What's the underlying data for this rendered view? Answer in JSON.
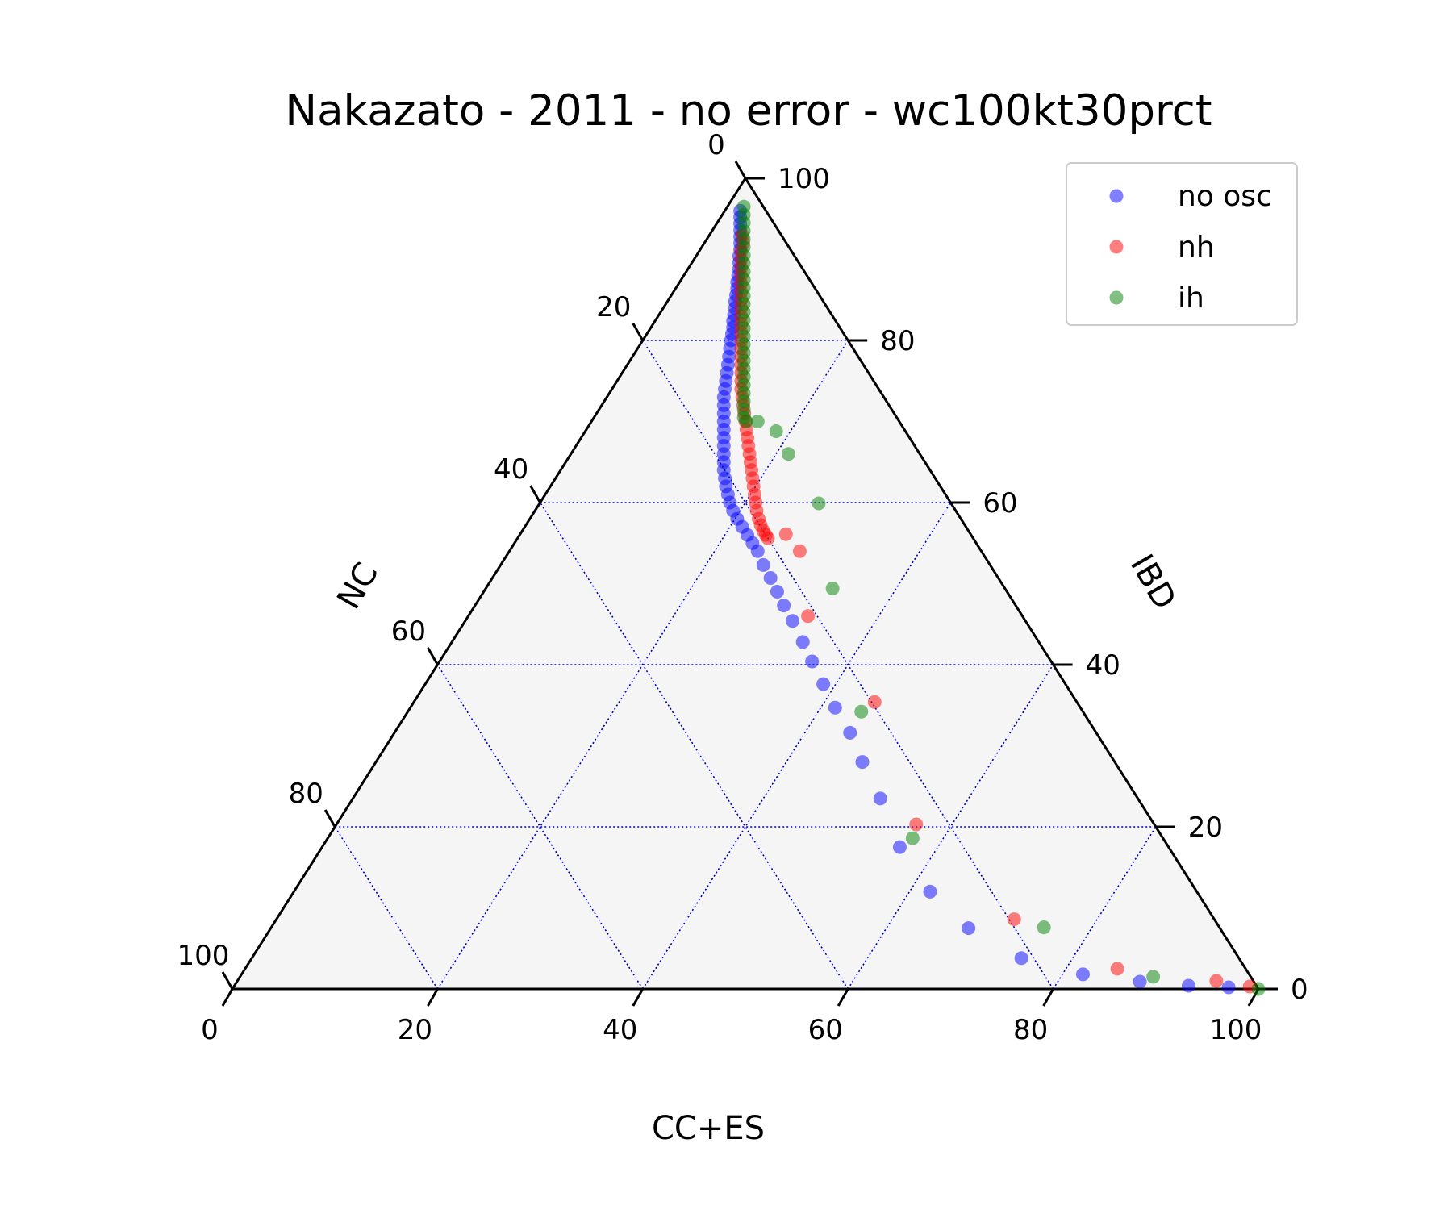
{
  "chart_data": {
    "type": "scatter",
    "subtype": "ternary",
    "title": "Nakazato - 2011 - no error - wc100kt30prct",
    "axes": {
      "bottom": {
        "label": "CC+ES",
        "ticks": [
          "0",
          "20",
          "40",
          "60",
          "80",
          "100"
        ]
      },
      "right": {
        "label": "IBD",
        "ticks": [
          "0",
          "20",
          "40",
          "60",
          "80",
          "100"
        ]
      },
      "left": {
        "label": "NC",
        "ticks": [
          "0",
          "20",
          "40",
          "60",
          "80",
          "100"
        ]
      },
      "range": [
        0,
        100
      ]
    },
    "grid": true,
    "legend_position": "top-right",
    "series": [
      {
        "name": "no osc",
        "color": "#0000ff",
        "points": [
          {
            "ccEs": 1.5,
            "ibd": 96.0
          },
          {
            "ccEs": 1.9,
            "ibd": 95.2
          },
          {
            "ccEs": 2.3,
            "ibd": 94.4
          },
          {
            "ccEs": 2.7,
            "ibd": 93.6
          },
          {
            "ccEs": 3.1,
            "ibd": 92.8
          },
          {
            "ccEs": 3.5,
            "ibd": 92.0
          },
          {
            "ccEs": 3.9,
            "ibd": 91.2
          },
          {
            "ccEs": 4.2,
            "ibd": 90.4
          },
          {
            "ccEs": 4.6,
            "ibd": 89.6
          },
          {
            "ccEs": 5.0,
            "ibd": 88.8
          },
          {
            "ccEs": 5.3,
            "ibd": 88.0
          },
          {
            "ccEs": 5.6,
            "ibd": 87.2
          },
          {
            "ccEs": 6.0,
            "ibd": 86.4
          },
          {
            "ccEs": 6.3,
            "ibd": 85.6
          },
          {
            "ccEs": 6.6,
            "ibd": 84.8
          },
          {
            "ccEs": 7.0,
            "ibd": 84.0
          },
          {
            "ccEs": 7.3,
            "ibd": 83.2
          },
          {
            "ccEs": 7.6,
            "ibd": 82.4
          },
          {
            "ccEs": 8.0,
            "ibd": 81.6
          },
          {
            "ccEs": 8.3,
            "ibd": 80.8
          },
          {
            "ccEs": 8.6,
            "ibd": 80.0
          },
          {
            "ccEs": 9.0,
            "ibd": 79.0
          },
          {
            "ccEs": 9.4,
            "ibd": 78.0
          },
          {
            "ccEs": 9.8,
            "ibd": 77.0
          },
          {
            "ccEs": 10.2,
            "ibd": 76.0
          },
          {
            "ccEs": 10.6,
            "ibd": 75.0
          },
          {
            "ccEs": 11.0,
            "ibd": 74.0
          },
          {
            "ccEs": 11.4,
            "ibd": 73.0
          },
          {
            "ccEs": 11.9,
            "ibd": 72.0
          },
          {
            "ccEs": 12.4,
            "ibd": 71.0
          },
          {
            "ccEs": 12.9,
            "ibd": 70.0
          },
          {
            "ccEs": 13.4,
            "ibd": 69.0
          },
          {
            "ccEs": 13.9,
            "ibd": 68.0
          },
          {
            "ccEs": 14.4,
            "ibd": 67.0
          },
          {
            "ccEs": 14.9,
            "ibd": 66.0
          },
          {
            "ccEs": 15.4,
            "ibd": 65.0
          },
          {
            "ccEs": 15.9,
            "ibd": 64.0
          },
          {
            "ccEs": 16.5,
            "ibd": 63.0
          },
          {
            "ccEs": 17.1,
            "ibd": 62.0
          },
          {
            "ccEs": 17.8,
            "ibd": 61.0
          },
          {
            "ccEs": 18.5,
            "ibd": 60.0
          },
          {
            "ccEs": 19.3,
            "ibd": 59.0
          },
          {
            "ccEs": 20.2,
            "ibd": 58.0
          },
          {
            "ccEs": 21.2,
            "ibd": 57.0
          },
          {
            "ccEs": 22.2,
            "ibd": 56.0
          },
          {
            "ccEs": 23.2,
            "ibd": 55.0
          },
          {
            "ccEs": 24.2,
            "ibd": 54.0
          },
          {
            "ccEs": 25.6,
            "ibd": 52.3
          },
          {
            "ccEs": 27.1,
            "ibd": 50.7
          },
          {
            "ccEs": 28.6,
            "ibd": 49.0
          },
          {
            "ccEs": 30.1,
            "ibd": 47.3
          },
          {
            "ccEs": 31.9,
            "ibd": 45.4
          },
          {
            "ccEs": 34.2,
            "ibd": 42.8
          },
          {
            "ccEs": 36.3,
            "ibd": 40.4
          },
          {
            "ccEs": 38.8,
            "ibd": 37.6
          },
          {
            "ccEs": 41.4,
            "ibd": 34.7
          },
          {
            "ccEs": 44.4,
            "ibd": 31.6
          },
          {
            "ccEs": 47.4,
            "ibd": 28.0
          },
          {
            "ccEs": 51.4,
            "ibd": 23.5
          },
          {
            "ccEs": 56.3,
            "ibd": 17.5
          },
          {
            "ccEs": 62.0,
            "ibd": 12.0
          },
          {
            "ccEs": 68.0,
            "ibd": 7.5
          },
          {
            "ccEs": 75.0,
            "ibd": 3.8
          },
          {
            "ccEs": 82.0,
            "ibd": 1.8
          },
          {
            "ccEs": 88.0,
            "ibd": 0.9
          },
          {
            "ccEs": 93.0,
            "ibd": 0.4
          },
          {
            "ccEs": 97.0,
            "ibd": 0.2
          }
        ]
      },
      {
        "name": "nh",
        "color": "#ff0000",
        "points": [
          {
            "ccEs": 3.2,
            "ibd": 93.0
          },
          {
            "ccEs": 3.8,
            "ibd": 92.0
          },
          {
            "ccEs": 4.1,
            "ibd": 91.0
          },
          {
            "ccEs": 4.6,
            "ibd": 90.0
          },
          {
            "ccEs": 5.1,
            "ibd": 89.0
          },
          {
            "ccEs": 5.6,
            "ibd": 88.0
          },
          {
            "ccEs": 6.1,
            "ibd": 87.0
          },
          {
            "ccEs": 6.6,
            "ibd": 86.0
          },
          {
            "ccEs": 7.1,
            "ibd": 85.0
          },
          {
            "ccEs": 7.6,
            "ibd": 84.0
          },
          {
            "ccEs": 8.1,
            "ibd": 83.0
          },
          {
            "ccEs": 8.6,
            "ibd": 82.0
          },
          {
            "ccEs": 9.1,
            "ibd": 81.0
          },
          {
            "ccEs": 9.6,
            "ibd": 80.0
          },
          {
            "ccEs": 10.1,
            "ibd": 79.0
          },
          {
            "ccEs": 10.6,
            "ibd": 78.0
          },
          {
            "ccEs": 11.1,
            "ibd": 77.0
          },
          {
            "ccEs": 11.6,
            "ibd": 76.0
          },
          {
            "ccEs": 12.1,
            "ibd": 75.0
          },
          {
            "ccEs": 12.6,
            "ibd": 74.0
          },
          {
            "ccEs": 13.2,
            "ibd": 73.0
          },
          {
            "ccEs": 13.8,
            "ibd": 72.0
          },
          {
            "ccEs": 14.4,
            "ibd": 71.0
          },
          {
            "ccEs": 15.0,
            "ibd": 70.0
          },
          {
            "ccEs": 15.6,
            "ibd": 69.0
          },
          {
            "ccEs": 16.2,
            "ibd": 68.0
          },
          {
            "ccEs": 16.8,
            "ibd": 67.0
          },
          {
            "ccEs": 17.4,
            "ibd": 66.0
          },
          {
            "ccEs": 18.0,
            "ibd": 65.0
          },
          {
            "ccEs": 18.6,
            "ibd": 64.0
          },
          {
            "ccEs": 19.2,
            "ibd": 63.0
          },
          {
            "ccEs": 19.8,
            "ibd": 62.0
          },
          {
            "ccEs": 20.4,
            "ibd": 61.0
          },
          {
            "ccEs": 21.0,
            "ibd": 60.0
          },
          {
            "ccEs": 21.6,
            "ibd": 59.0
          },
          {
            "ccEs": 22.3,
            "ibd": 58.0
          },
          {
            "ccEs": 22.9,
            "ibd": 57.2
          },
          {
            "ccEs": 23.5,
            "ibd": 56.5
          },
          {
            "ccEs": 24.0,
            "ibd": 56.0
          },
          {
            "ccEs": 24.4,
            "ibd": 55.6
          },
          {
            "ccEs": 25.9,
            "ibd": 56.1
          },
          {
            "ccEs": 28.3,
            "ibd": 54.0
          },
          {
            "ccEs": 33.1,
            "ibd": 46.0
          },
          {
            "ccEs": 44.9,
            "ibd": 35.4
          },
          {
            "ccEs": 56.5,
            "ibd": 20.3
          },
          {
            "ccEs": 71.9,
            "ibd": 8.6
          },
          {
            "ccEs": 85.0,
            "ibd": 2.5
          },
          {
            "ccEs": 95.4,
            "ibd": 1.0
          },
          {
            "ccEs": 99.0,
            "ibd": 0.3
          }
        ]
      },
      {
        "name": "ih",
        "color": "#008000",
        "points": [
          {
            "ccEs": 1.6,
            "ibd": 96.5
          },
          {
            "ccEs": 2.1,
            "ibd": 95.5
          },
          {
            "ccEs": 2.6,
            "ibd": 94.5
          },
          {
            "ccEs": 3.1,
            "ibd": 93.5
          },
          {
            "ccEs": 3.6,
            "ibd": 92.5
          },
          {
            "ccEs": 4.1,
            "ibd": 91.5
          },
          {
            "ccEs": 4.6,
            "ibd": 90.5
          },
          {
            "ccEs": 5.1,
            "ibd": 89.5
          },
          {
            "ccEs": 5.6,
            "ibd": 88.5
          },
          {
            "ccEs": 6.1,
            "ibd": 87.5
          },
          {
            "ccEs": 6.6,
            "ibd": 86.5
          },
          {
            "ccEs": 7.1,
            "ibd": 85.5
          },
          {
            "ccEs": 7.6,
            "ibd": 84.5
          },
          {
            "ccEs": 8.1,
            "ibd": 83.5
          },
          {
            "ccEs": 8.6,
            "ibd": 82.5
          },
          {
            "ccEs": 9.1,
            "ibd": 81.5
          },
          {
            "ccEs": 9.6,
            "ibd": 80.5
          },
          {
            "ccEs": 10.1,
            "ibd": 79.5
          },
          {
            "ccEs": 10.6,
            "ibd": 78.5
          },
          {
            "ccEs": 11.1,
            "ibd": 77.5
          },
          {
            "ccEs": 11.6,
            "ibd": 76.5
          },
          {
            "ccEs": 12.1,
            "ibd": 75.5
          },
          {
            "ccEs": 12.6,
            "ibd": 74.5
          },
          {
            "ccEs": 13.1,
            "ibd": 73.5
          },
          {
            "ccEs": 13.6,
            "ibd": 72.5
          },
          {
            "ccEs": 14.1,
            "ibd": 71.5
          },
          {
            "ccEs": 14.6,
            "ibd": 70.5
          },
          {
            "ccEs": 15.1,
            "ibd": 70.0
          },
          {
            "ccEs": 16.2,
            "ibd": 70.0
          },
          {
            "ccEs": 18.6,
            "ibd": 68.8
          },
          {
            "ccEs": 21.2,
            "ibd": 66.0
          },
          {
            "ccEs": 27.2,
            "ibd": 59.9
          },
          {
            "ccEs": 33.8,
            "ibd": 49.4
          },
          {
            "ccEs": 44.2,
            "ibd": 34.2
          },
          {
            "ccEs": 57.0,
            "ibd": 18.6
          },
          {
            "ccEs": 75.3,
            "ibd": 7.6
          },
          {
            "ccEs": 89.0,
            "ibd": 1.5
          },
          {
            "ccEs": 100.0,
            "ibd": 0.0
          }
        ]
      }
    ]
  },
  "colors": {
    "background": "#ffffff",
    "plot_fill": "#f5f5f5",
    "grid": "#0000cd",
    "frame": "#000000"
  }
}
